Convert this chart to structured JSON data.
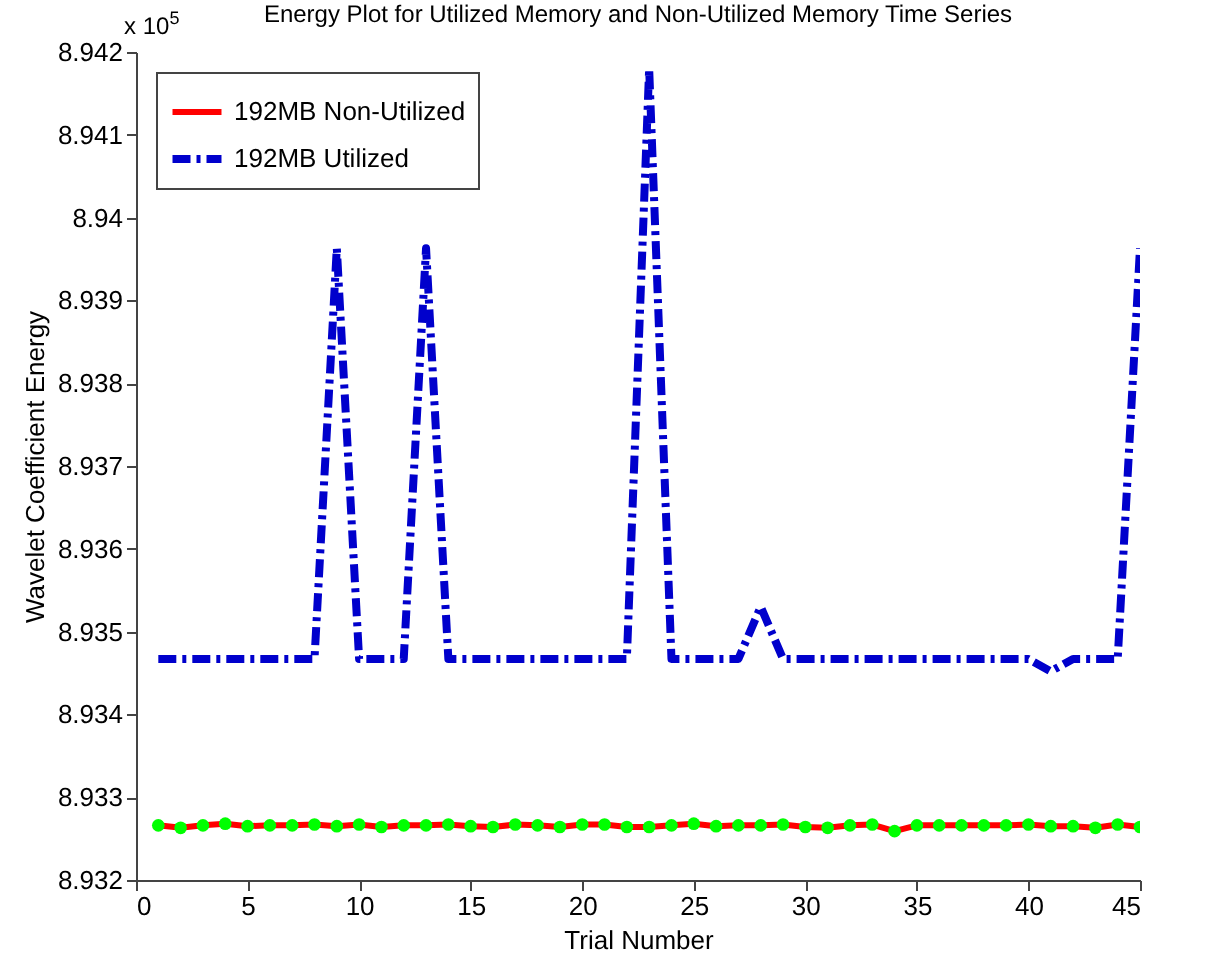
{
  "chart_data": {
    "type": "line",
    "title": "Energy Plot for Utilized Memory and Non-Utilized Memory Time Series",
    "xlabel": "Trial Number",
    "ylabel": "Wavelet Coefficient Energy",
    "annotations": [
      "x 10$^{5}$"
    ],
    "x": [
      1,
      2,
      3,
      4,
      5,
      6,
      7,
      8,
      9,
      10,
      11,
      12,
      13,
      14,
      15,
      16,
      17,
      18,
      19,
      20,
      21,
      22,
      23,
      24,
      25,
      26,
      27,
      28,
      29,
      30,
      31,
      32,
      33,
      34,
      35,
      36,
      37,
      38,
      39,
      40,
      41,
      42,
      43,
      44,
      45
    ],
    "xlim": [
      0,
      45
    ],
    "xticks": [
      0,
      5,
      10,
      15,
      20,
      25,
      30,
      35,
      40,
      45
    ],
    "ylim": [
      8.932,
      8.942
    ],
    "yticks": [
      8.932,
      8.933,
      8.934,
      8.935,
      8.936,
      8.937,
      8.938,
      8.939,
      8.94,
      8.941,
      8.942
    ],
    "grid": false,
    "legend": "top left",
    "series": [
      {
        "name": "192MB Non-Utilized",
        "color": "#ff0000",
        "marker": "circle",
        "line_style": "solid",
        "colors": [
          "#00ff00",
          "#00ff00",
          "#00ff00",
          "#00ff00",
          "#00ff00",
          "#00ff00",
          "#00ff00",
          "#00ff00",
          "#00ff00",
          "#00ff00",
          "#00ff00",
          "#00ff00",
          "#00ff00",
          "#00ff00",
          "#00ff00",
          "#00ff00",
          "#00ff00",
          "#00ff00",
          "#00ff00",
          "#00ff00",
          "#00ff00",
          "#00ff00",
          "#00ff00",
          "#00ff00",
          "#00ff00",
          "#00ff00",
          "#00ff00",
          "#00ff00",
          "#00ff00",
          "#00ff00",
          "#00ff00",
          "#00ff00",
          "#00ff00",
          "#00ff00",
          "#00ff00",
          "#00ff00",
          "#00ff00",
          "#00ff00",
          "#00ff00",
          "#00ff00",
          "#00ff00",
          "#00ff00",
          "#00ff00",
          "#00ff00",
          "#00ff00"
        ],
        "values": [
          8.93266,
          8.93263,
          8.93266,
          8.93268,
          8.93265,
          8.93266,
          8.93266,
          8.93267,
          8.93265,
          8.93267,
          8.93264,
          8.93266,
          8.93266,
          8.93267,
          8.93265,
          8.93264,
          8.93267,
          8.93266,
          8.93264,
          8.93267,
          8.93267,
          8.93264,
          8.93264,
          8.93266,
          8.93268,
          8.93265,
          8.93266,
          8.93266,
          8.93267,
          8.93264,
          8.93263,
          8.93266,
          8.93267,
          8.93259,
          8.93266,
          8.93266,
          8.93266,
          8.93266,
          8.93266,
          8.93267,
          8.93265,
          8.93265,
          8.93263,
          8.93267,
          8.93264
        ]
      },
      {
        "name": "192MB Utilized",
        "color": "#0000cc",
        "marker": "none",
        "line_style": "dashdot",
        "values": [
          8.93467,
          8.93467,
          8.93467,
          8.93467,
          8.93467,
          8.93467,
          8.93467,
          8.93467,
          8.93963,
          8.93467,
          8.93467,
          8.93467,
          8.93963,
          8.93467,
          8.93467,
          8.93467,
          8.93467,
          8.93467,
          8.93467,
          8.93467,
          8.93467,
          8.93467,
          8.9418,
          8.93467,
          8.93467,
          8.93467,
          8.93467,
          8.9353,
          8.93467,
          8.93467,
          8.93467,
          8.93467,
          8.93467,
          8.93467,
          8.93467,
          8.93467,
          8.93467,
          8.93467,
          8.93467,
          8.93467,
          8.93452,
          8.93467,
          8.93467,
          8.93467,
          8.93963
        ]
      }
    ]
  }
}
